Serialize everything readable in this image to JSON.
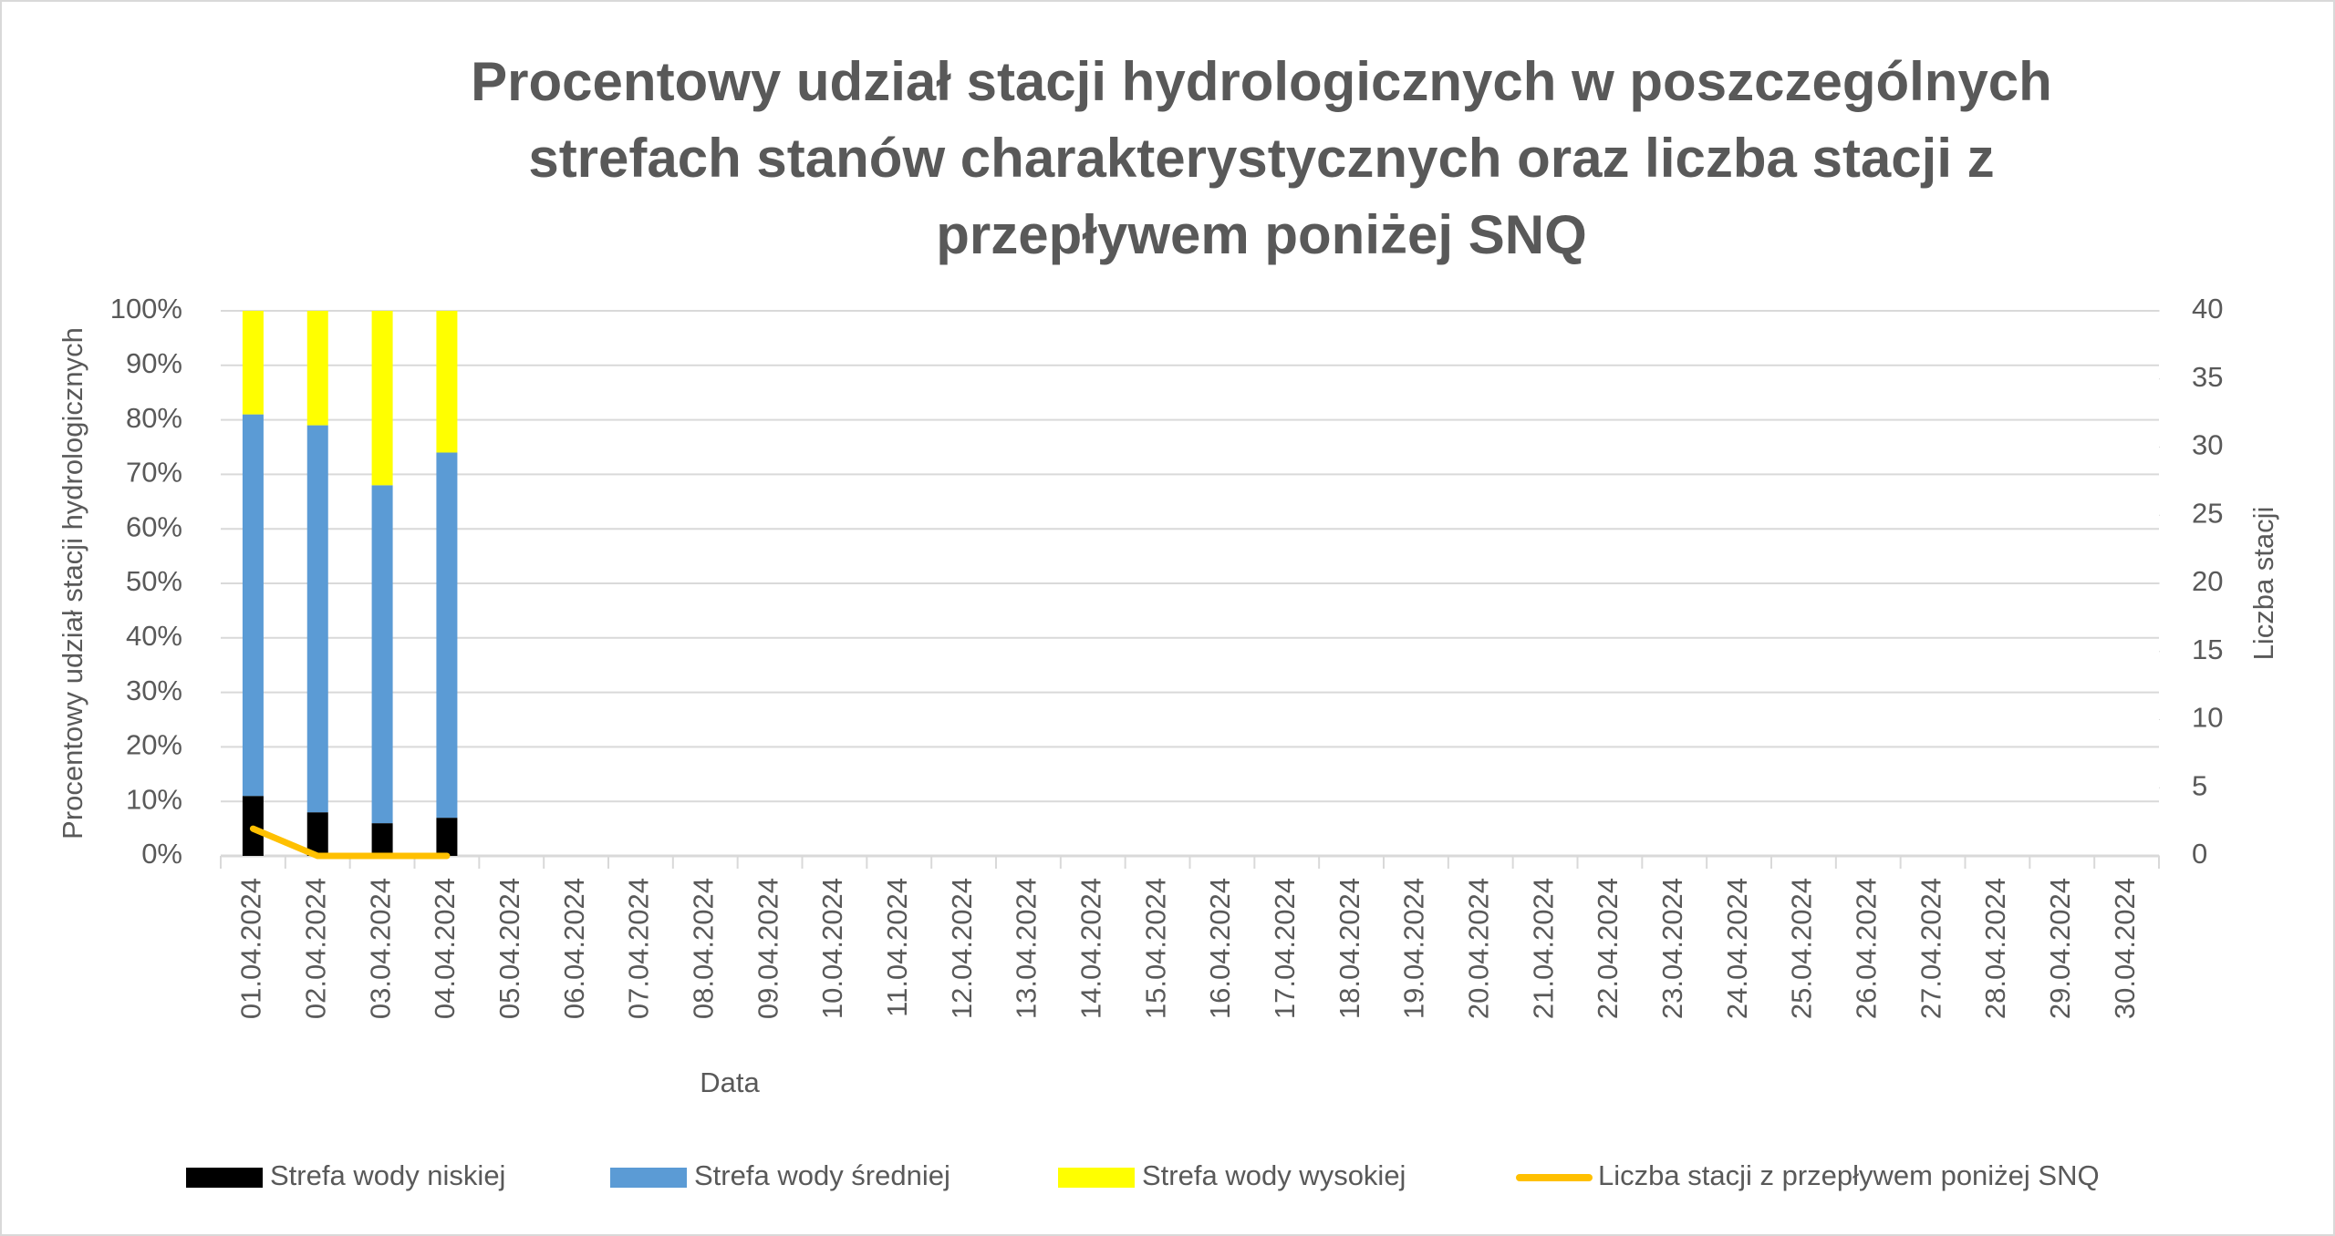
{
  "chart_data": {
    "type": "bar",
    "title": "Procentowy udział stacji hydrologicznych w poszczególnych strefach stanów charakterystycznych oraz liczba stacji z przepływem poniżej SNQ",
    "x_label": "Data",
    "y_label": "Procentowy udział stacji hydrologicznych",
    "y2_label": "Liczba stacji",
    "stacked": true,
    "categories": [
      "01.04.2024",
      "02.04.2024",
      "03.04.2024",
      "04.04.2024",
      "05.04.2024",
      "06.04.2024",
      "07.04.2024",
      "08.04.2024",
      "09.04.2024",
      "10.04.2024",
      "11.04.2024",
      "12.04.2024",
      "13.04.2024",
      "14.04.2024",
      "15.04.2024",
      "16.04.2024",
      "17.04.2024",
      "18.04.2024",
      "19.04.2024",
      "20.04.2024",
      "21.04.2024",
      "22.04.2024",
      "23.04.2024",
      "24.04.2024",
      "25.04.2024",
      "26.04.2024",
      "27.04.2024",
      "28.04.2024",
      "29.04.2024",
      "30.04.2024"
    ],
    "series": [
      {
        "name": "Strefa wody niskiej",
        "color": "#000000",
        "type": "bar",
        "values": [
          11,
          8,
          6,
          7,
          null,
          null,
          null,
          null,
          null,
          null,
          null,
          null,
          null,
          null,
          null,
          null,
          null,
          null,
          null,
          null,
          null,
          null,
          null,
          null,
          null,
          null,
          null,
          null,
          null,
          null
        ]
      },
      {
        "name": "Strefa wody średniej",
        "color": "#5b9bd5",
        "type": "bar",
        "values": [
          70,
          71,
          62,
          67,
          null,
          null,
          null,
          null,
          null,
          null,
          null,
          null,
          null,
          null,
          null,
          null,
          null,
          null,
          null,
          null,
          null,
          null,
          null,
          null,
          null,
          null,
          null,
          null,
          null,
          null
        ]
      },
      {
        "name": "Strefa wody wysokiej",
        "color": "#ffff00",
        "type": "bar",
        "values": [
          19,
          21,
          32,
          26,
          null,
          null,
          null,
          null,
          null,
          null,
          null,
          null,
          null,
          null,
          null,
          null,
          null,
          null,
          null,
          null,
          null,
          null,
          null,
          null,
          null,
          null,
          null,
          null,
          null,
          null
        ]
      },
      {
        "name": "Liczba stacji z przepływem poniżej SNQ",
        "color": "#ffc000",
        "type": "line",
        "axis": "y2",
        "values": [
          2,
          0,
          0,
          0,
          null,
          null,
          null,
          null,
          null,
          null,
          null,
          null,
          null,
          null,
          null,
          null,
          null,
          null,
          null,
          null,
          null,
          null,
          null,
          null,
          null,
          null,
          null,
          null,
          null,
          null
        ]
      }
    ],
    "ylim": [
      0,
      100
    ],
    "yticks": [
      {
        "value": 0,
        "label": "0%"
      },
      {
        "value": 10,
        "label": "10%"
      },
      {
        "value": 20,
        "label": "20%"
      },
      {
        "value": 30,
        "label": "30%"
      },
      {
        "value": 40,
        "label": "40%"
      },
      {
        "value": 50,
        "label": "50%"
      },
      {
        "value": 60,
        "label": "60%"
      },
      {
        "value": 70,
        "label": "70%"
      },
      {
        "value": 80,
        "label": "80%"
      },
      {
        "value": 90,
        "label": "90%"
      },
      {
        "value": 100,
        "label": "100%"
      }
    ],
    "y2lim": [
      0,
      40
    ],
    "y2ticks": [
      0,
      5,
      10,
      15,
      20,
      25,
      30,
      35,
      40
    ],
    "grid": true,
    "legend": "bottom"
  }
}
